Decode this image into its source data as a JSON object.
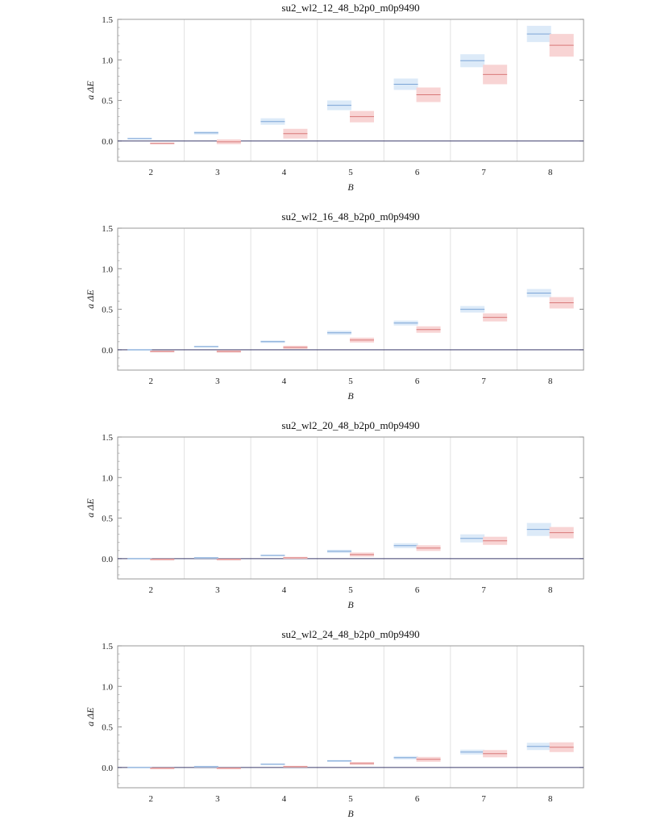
{
  "chart_data": [
    {
      "type": "bar",
      "title": "su2_wl2_12_48_b2p0_m0p9490",
      "xlabel": "B",
      "ylabel": "a ΔE",
      "ylim": [
        -0.25,
        1.5
      ],
      "yticks": [
        0.0,
        0.5,
        1.0,
        1.5
      ],
      "ytick_labels": [
        "0.0",
        "0.5",
        "1.0",
        "1.5"
      ],
      "categories": [
        "2",
        "3",
        "4",
        "5",
        "6",
        "7",
        "8"
      ],
      "series": [
        {
          "name": "blue",
          "color": "#7ba4d6",
          "fill": "#dceaf8",
          "values": [
            0.03,
            0.1,
            0.24,
            0.44,
            0.7,
            0.99,
            1.32
          ],
          "errors": [
            0.01,
            0.02,
            0.04,
            0.06,
            0.07,
            0.08,
            0.1
          ]
        },
        {
          "name": "red",
          "color": "#d87878",
          "fill": "#f8d4d4",
          "values": [
            -0.03,
            -0.01,
            0.09,
            0.3,
            0.57,
            0.82,
            1.18
          ],
          "errors": [
            0.01,
            0.03,
            0.06,
            0.07,
            0.09,
            0.12,
            0.14
          ]
        }
      ]
    },
    {
      "type": "bar",
      "title": "su2_wl2_16_48_b2p0_m0p9490",
      "xlabel": "B",
      "ylabel": "a ΔE",
      "ylim": [
        -0.25,
        1.5
      ],
      "yticks": [
        0.0,
        0.5,
        1.0,
        1.5
      ],
      "ytick_labels": [
        "0.0",
        "0.5",
        "1.0",
        "1.5"
      ],
      "categories": [
        "2",
        "3",
        "4",
        "5",
        "6",
        "7",
        "8"
      ],
      "series": [
        {
          "name": "blue",
          "color": "#7ba4d6",
          "fill": "#dceaf8",
          "values": [
            0.0,
            0.04,
            0.1,
            0.21,
            0.33,
            0.5,
            0.7
          ],
          "errors": [
            0.005,
            0.008,
            0.015,
            0.025,
            0.03,
            0.04,
            0.05
          ]
        },
        {
          "name": "red",
          "color": "#d87878",
          "fill": "#f8d4d4",
          "values": [
            -0.02,
            -0.02,
            0.03,
            0.12,
            0.25,
            0.4,
            0.58
          ],
          "errors": [
            0.01,
            0.015,
            0.02,
            0.03,
            0.04,
            0.05,
            0.07
          ]
        }
      ]
    },
    {
      "type": "bar",
      "title": "su2_wl2_20_48_b2p0_m0p9490",
      "xlabel": "B",
      "ylabel": "a ΔE",
      "ylim": [
        -0.25,
        1.5
      ],
      "yticks": [
        0.0,
        0.5,
        1.0,
        1.5
      ],
      "ytick_labels": [
        "0.0",
        "0.5",
        "1.0",
        "1.5"
      ],
      "categories": [
        "2",
        "3",
        "4",
        "5",
        "6",
        "7",
        "8"
      ],
      "series": [
        {
          "name": "blue",
          "color": "#7ba4d6",
          "fill": "#dceaf8",
          "values": [
            0.0,
            0.01,
            0.04,
            0.09,
            0.16,
            0.25,
            0.36
          ],
          "errors": [
            0.004,
            0.006,
            0.01,
            0.02,
            0.03,
            0.05,
            0.08
          ]
        },
        {
          "name": "red",
          "color": "#d87878",
          "fill": "#f8d4d4",
          "values": [
            -0.01,
            -0.01,
            0.01,
            0.05,
            0.13,
            0.22,
            0.32
          ],
          "errors": [
            0.005,
            0.008,
            0.012,
            0.025,
            0.035,
            0.05,
            0.07
          ]
        }
      ]
    },
    {
      "type": "bar",
      "title": "su2_wl2_24_48_b2p0_m0p9490",
      "xlabel": "B",
      "ylabel": "a ΔE",
      "ylim": [
        -0.25,
        1.5
      ],
      "yticks": [
        0.0,
        0.5,
        1.0,
        1.5
      ],
      "ytick_labels": [
        "0.0",
        "0.5",
        "1.0",
        "1.5"
      ],
      "categories": [
        "2",
        "3",
        "4",
        "5",
        "6",
        "7",
        "8"
      ],
      "series": [
        {
          "name": "blue",
          "color": "#7ba4d6",
          "fill": "#dceaf8",
          "values": [
            0.0,
            0.01,
            0.04,
            0.08,
            0.12,
            0.19,
            0.26
          ],
          "errors": [
            0.003,
            0.005,
            0.008,
            0.012,
            0.02,
            0.03,
            0.045
          ]
        },
        {
          "name": "red",
          "color": "#d87878",
          "fill": "#f8d4d4",
          "values": [
            -0.01,
            -0.01,
            0.01,
            0.05,
            0.1,
            0.17,
            0.25
          ],
          "errors": [
            0.004,
            0.006,
            0.01,
            0.018,
            0.03,
            0.045,
            0.06
          ]
        }
      ]
    }
  ]
}
